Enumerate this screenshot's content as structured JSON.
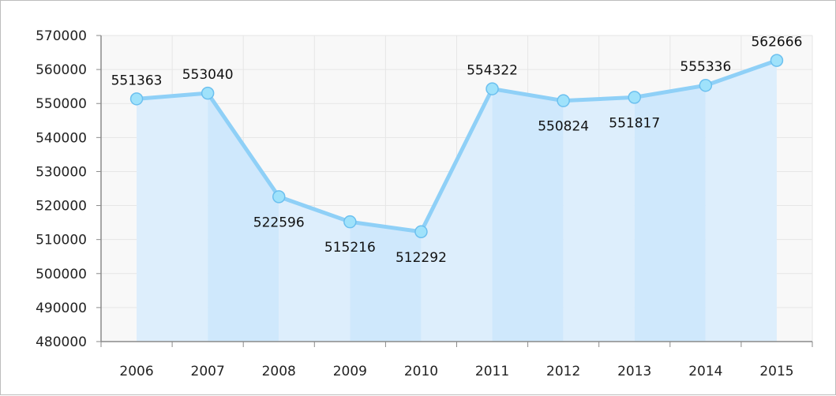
{
  "chart_data": {
    "type": "area",
    "categories": [
      "2006",
      "2007",
      "2008",
      "2009",
      "2010",
      "2011",
      "2012",
      "2013",
      "2014",
      "2015"
    ],
    "series": [
      {
        "values": [
          551363,
          553040,
          522596,
          515216,
          512292,
          554322,
          550824,
          551817,
          555336,
          562666
        ],
        "data_labels": [
          "551363",
          "553040",
          "522596",
          "515216",
          "512292",
          "554322",
          "550824",
          "551817",
          "555336",
          "562666"
        ]
      }
    ],
    "ylim": [
      480000,
      570000
    ],
    "yticks": [
      480000,
      490000,
      500000,
      510000,
      520000,
      530000,
      540000,
      550000,
      560000,
      570000
    ],
    "ytick_labels": [
      "480000",
      "490000",
      "500000",
      "510000",
      "520000",
      "530000",
      "540000",
      "550000",
      "560000",
      "570000"
    ],
    "grid": true,
    "title": "",
    "xlabel": "",
    "ylabel": "",
    "colors": {
      "line": "#8fd0f7",
      "marker_fill": "#9fe2fb",
      "marker_stroke": "#6cc0ef",
      "band_a": "#cfe8fc",
      "band_b": "#ddeefc",
      "grid": "#e6e6e6",
      "plot_bg": "#f8f8f8",
      "axis": "#8a8a8a"
    }
  }
}
